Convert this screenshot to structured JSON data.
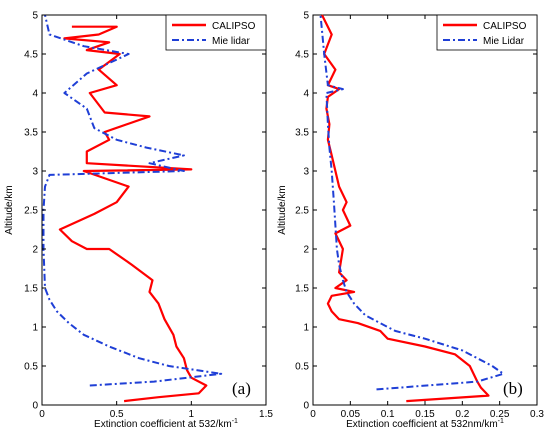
{
  "chart_data": [
    {
      "type": "line",
      "panel_label": "(a)",
      "xlabel": "Extinction coefficient at 532/km",
      "xlabel_sup": "-1",
      "ylabel": "Altitude/km",
      "xlim": [
        0,
        1.5
      ],
      "ylim": [
        0,
        5
      ],
      "xticks": [
        "0",
        "0.5",
        "1",
        "1.5"
      ],
      "yticks": [
        "0",
        "0.5",
        "1",
        "1.5",
        "2",
        "2.5",
        "3",
        "3.5",
        "4",
        "4.5",
        "5"
      ],
      "xtick_values": [
        0,
        0.5,
        1,
        1.5
      ],
      "ytick_values": [
        0,
        0.5,
        1,
        1.5,
        2,
        2.5,
        3,
        3.5,
        4,
        4.5,
        5
      ],
      "legend_position": "top-right",
      "series": [
        {
          "name": "CALIPSO",
          "color": "#ff0000",
          "style": "solid",
          "points": [
            [
              0.55,
              0.05
            ],
            [
              0.78,
              0.1
            ],
            [
              1.05,
              0.15
            ],
            [
              1.1,
              0.25
            ],
            [
              1.0,
              0.35
            ],
            [
              0.97,
              0.45
            ],
            [
              0.95,
              0.6
            ],
            [
              0.9,
              0.75
            ],
            [
              0.88,
              0.9
            ],
            [
              0.82,
              1.1
            ],
            [
              0.78,
              1.3
            ],
            [
              0.72,
              1.45
            ],
            [
              0.74,
              1.6
            ],
            [
              0.6,
              1.8
            ],
            [
              0.45,
              2.0
            ],
            [
              0.3,
              2.0
            ],
            [
              0.2,
              2.1
            ],
            [
              0.12,
              2.25
            ],
            [
              0.35,
              2.45
            ],
            [
              0.5,
              2.6
            ],
            [
              0.58,
              2.8
            ],
            [
              0.28,
              3.0
            ],
            [
              1.0,
              3.02
            ],
            [
              0.3,
              3.1
            ],
            [
              0.3,
              3.25
            ],
            [
              0.45,
              3.4
            ],
            [
              0.42,
              3.5
            ],
            [
              0.72,
              3.7
            ],
            [
              0.42,
              3.75
            ],
            [
              0.32,
              4.0
            ],
            [
              0.5,
              4.1
            ],
            [
              0.38,
              4.3
            ],
            [
              0.52,
              4.5
            ],
            [
              0.3,
              4.55
            ],
            [
              0.45,
              4.65
            ],
            [
              0.15,
              4.7
            ],
            [
              0.38,
              4.75
            ],
            [
              0.5,
              4.85
            ],
            [
              0.2,
              4.85
            ]
          ]
        },
        {
          "name": "Mie lidar",
          "color": "#1f3fd6",
          "style": "dashdot",
          "points": [
            [
              0.32,
              0.25
            ],
            [
              0.75,
              0.3
            ],
            [
              1.2,
              0.4
            ],
            [
              0.85,
              0.5
            ],
            [
              0.65,
              0.6
            ],
            [
              0.45,
              0.75
            ],
            [
              0.28,
              0.9
            ],
            [
              0.18,
              1.05
            ],
            [
              0.1,
              1.2
            ],
            [
              0.05,
              1.35
            ],
            [
              0.02,
              1.5
            ],
            [
              0.01,
              2.0
            ],
            [
              0.01,
              2.5
            ],
            [
              0.02,
              2.8
            ],
            [
              0.05,
              2.95
            ],
            [
              0.95,
              3.0
            ],
            [
              0.72,
              3.1
            ],
            [
              0.95,
              3.2
            ],
            [
              0.7,
              3.3
            ],
            [
              0.5,
              3.4
            ],
            [
              0.35,
              3.55
            ],
            [
              0.3,
              3.8
            ],
            [
              0.15,
              4.0
            ],
            [
              0.3,
              4.25
            ],
            [
              0.58,
              4.5
            ],
            [
              0.28,
              4.6
            ],
            [
              0.05,
              4.75
            ],
            [
              0.02,
              5.0
            ]
          ]
        }
      ]
    },
    {
      "type": "line",
      "panel_label": "(b)",
      "xlabel": "Extinction coefficient at 532nm/km",
      "xlabel_sup": "-1",
      "ylabel": "Altitude/km",
      "xlim": [
        0,
        0.3
      ],
      "ylim": [
        0,
        5
      ],
      "xticks": [
        "0",
        "0.05",
        "0.1",
        "0.15",
        "0.2",
        "0.25",
        "0.3"
      ],
      "yticks": [
        "0",
        "0.5",
        "1",
        "1.5",
        "2",
        "2.5",
        "3",
        "3.5",
        "4",
        "4.5",
        "5"
      ],
      "xtick_values": [
        0,
        0.05,
        0.1,
        0.15,
        0.2,
        0.25,
        0.3
      ],
      "ytick_values": [
        0,
        0.5,
        1,
        1.5,
        2,
        2.5,
        3,
        3.5,
        4,
        4.5,
        5
      ],
      "legend_position": "top-right",
      "series": [
        {
          "name": "CALIPSO",
          "color": "#ff0000",
          "style": "solid",
          "points": [
            [
              0.125,
              0.05
            ],
            [
              0.235,
              0.12
            ],
            [
              0.225,
              0.22
            ],
            [
              0.22,
              0.3
            ],
            [
              0.21,
              0.5
            ],
            [
              0.19,
              0.65
            ],
            [
              0.15,
              0.75
            ],
            [
              0.1,
              0.85
            ],
            [
              0.09,
              0.95
            ],
            [
              0.06,
              1.05
            ],
            [
              0.035,
              1.1
            ],
            [
              0.025,
              1.2
            ],
            [
              0.02,
              1.3
            ],
            [
              0.025,
              1.4
            ],
            [
              0.055,
              1.45
            ],
            [
              0.03,
              1.5
            ],
            [
              0.045,
              1.6
            ],
            [
              0.035,
              1.7
            ],
            [
              0.04,
              2.0
            ],
            [
              0.03,
              2.2
            ],
            [
              0.05,
              2.3
            ],
            [
              0.04,
              2.5
            ],
            [
              0.045,
              2.6
            ],
            [
              0.035,
              2.8
            ],
            [
              0.03,
              3.0
            ],
            [
              0.025,
              3.2
            ],
            [
              0.02,
              3.4
            ],
            [
              0.022,
              3.6
            ],
            [
              0.018,
              3.8
            ],
            [
              0.02,
              3.95
            ],
            [
              0.035,
              4.05
            ],
            [
              0.02,
              4.1
            ],
            [
              0.03,
              4.3
            ],
            [
              0.015,
              4.5
            ],
            [
              0.025,
              4.75
            ],
            [
              0.012,
              5.0
            ]
          ]
        },
        {
          "name": "Mie Lidar",
          "color": "#1f3fd6",
          "style": "dashdot",
          "points": [
            [
              0.085,
              0.2
            ],
            [
              0.22,
              0.3
            ],
            [
              0.255,
              0.4
            ],
            [
              0.24,
              0.5
            ],
            [
              0.2,
              0.7
            ],
            [
              0.15,
              0.85
            ],
            [
              0.11,
              0.95
            ],
            [
              0.09,
              1.05
            ],
            [
              0.07,
              1.15
            ],
            [
              0.055,
              1.3
            ],
            [
              0.045,
              1.45
            ],
            [
              0.04,
              1.6
            ],
            [
              0.035,
              1.8
            ],
            [
              0.032,
              2.0
            ],
            [
              0.03,
              2.3
            ],
            [
              0.028,
              2.6
            ],
            [
              0.025,
              3.0
            ],
            [
              0.022,
              3.3
            ],
            [
              0.02,
              3.6
            ],
            [
              0.018,
              4.0
            ],
            [
              0.04,
              4.05
            ],
            [
              0.02,
              4.1
            ],
            [
              0.015,
              4.5
            ],
            [
              0.012,
              4.8
            ],
            [
              0.01,
              5.0
            ]
          ]
        }
      ]
    }
  ]
}
